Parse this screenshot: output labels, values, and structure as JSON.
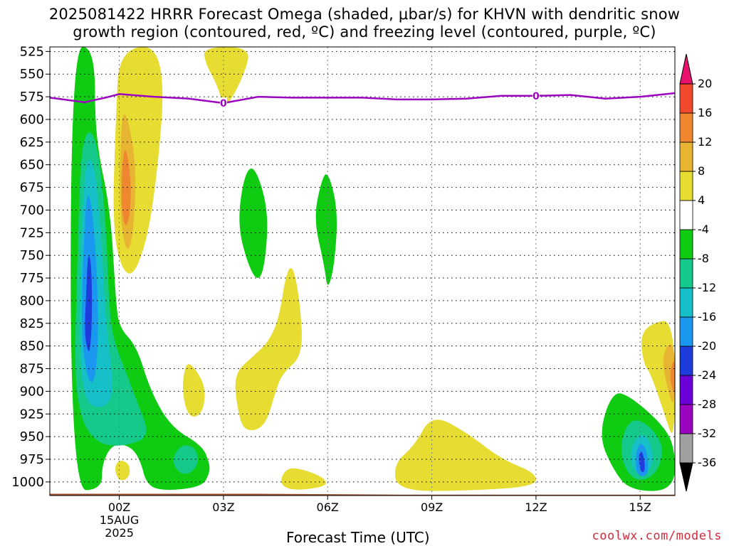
{
  "chart_data": {
    "type": "heatmap",
    "title_line1": "2025081422 HRRR Forecast Omega (shaded, μbar/s) for KHVN with dendritic snow",
    "title_line2": "growth region (contoured, red, ºC) and freezing level (contoured, purple, ºC)",
    "xlabel": "Forecast Time (UTC)",
    "x_axis": {
      "unit": "hours from 2025-08-14 22Z",
      "range": [
        0,
        18
      ],
      "ticks": [
        {
          "hour": 2,
          "label": "00Z",
          "sub1": "15AUG",
          "sub2": "2025"
        },
        {
          "hour": 5,
          "label": "03Z"
        },
        {
          "hour": 8,
          "label": "06Z"
        },
        {
          "hour": 11,
          "label": "09Z"
        },
        {
          "hour": 14,
          "label": "12Z"
        },
        {
          "hour": 17,
          "label": "15Z"
        }
      ]
    },
    "y_axis": {
      "unit": "hPa",
      "range": [
        1015,
        520
      ],
      "ticks": [
        "525",
        "550",
        "575",
        "600",
        "625",
        "650",
        "675",
        "700",
        "725",
        "750",
        "775",
        "800",
        "825",
        "850",
        "875",
        "900",
        "925",
        "950",
        "975",
        "1000"
      ]
    },
    "grid": true,
    "colorbar": {
      "placement": "right",
      "bins": [
        {
          "label": "-36",
          "color": "#000000"
        },
        {
          "label": "-32",
          "color": "#a0a0a0"
        },
        {
          "label": "-28",
          "color": "#9b05c0"
        },
        {
          "label": "-24",
          "color": "#6a00d7"
        },
        {
          "label": "-20",
          "color": "#1e3bdc"
        },
        {
          "label": "-16",
          "color": "#1a98f0"
        },
        {
          "label": "-12",
          "color": "#16c0c8"
        },
        {
          "label": "-8",
          "color": "#14c98a"
        },
        {
          "label": "-4",
          "color": "#0fcb11"
        },
        {
          "label": "4",
          "color": "#ffffff"
        },
        {
          "label": "8",
          "color": "#e6dc32"
        },
        {
          "label": "12",
          "color": "#e8b532"
        },
        {
          "label": "16",
          "color": "#ef8630"
        },
        {
          "label": "20",
          "color": "#f2492d"
        }
      ],
      "top_color": "#e8126e"
    },
    "freezing_level": {
      "color": "#9b05c0",
      "contour_label": "0",
      "points": [
        {
          "hour": 0,
          "hpa": 576
        },
        {
          "hour": 1,
          "hpa": 581
        },
        {
          "hour": 1.6,
          "hpa": 576
        },
        {
          "hour": 2,
          "hpa": 572
        },
        {
          "hour": 3,
          "hpa": 575
        },
        {
          "hour": 4,
          "hpa": 577
        },
        {
          "hour": 5,
          "hpa": 582
        },
        {
          "hour": 6,
          "hpa": 575
        },
        {
          "hour": 7,
          "hpa": 576
        },
        {
          "hour": 8,
          "hpa": 576
        },
        {
          "hour": 9,
          "hpa": 576
        },
        {
          "hour": 10,
          "hpa": 578
        },
        {
          "hour": 11,
          "hpa": 578
        },
        {
          "hour": 12,
          "hpa": 577
        },
        {
          "hour": 13,
          "hpa": 574
        },
        {
          "hour": 14,
          "hpa": 574
        },
        {
          "hour": 15,
          "hpa": 573
        },
        {
          "hour": 16,
          "hpa": 577
        },
        {
          "hour": 17,
          "hpa": 575
        },
        {
          "hour": 18,
          "hpa": 571
        }
      ]
    },
    "terrain": {
      "color": "#a0522d",
      "surface": [
        {
          "hour": 0,
          "hpa": 1013
        },
        {
          "hour": 6,
          "hpa": 1013
        },
        {
          "hour": 10,
          "hpa": 1014
        },
        {
          "hour": 18,
          "hpa": 1014
        }
      ]
    },
    "omega_regions": [
      {
        "name": "upward-motion-band-green",
        "value": -6,
        "color": "#0fcb11",
        "points": [
          [
            0.6,
            1010
          ],
          [
            0.6,
            520
          ],
          [
            1.3,
            520
          ],
          [
            1.3,
            620
          ],
          [
            1.75,
            700
          ],
          [
            1.9,
            800
          ],
          [
            2.0,
            830
          ],
          [
            2.5,
            850
          ],
          [
            2.9,
            900
          ],
          [
            3.5,
            940
          ],
          [
            4.4,
            960
          ],
          [
            4.6,
            980
          ],
          [
            4.6,
            990
          ],
          [
            4.4,
            1005
          ],
          [
            3.4,
            1010
          ],
          [
            2.8,
            1005
          ],
          [
            2.6,
            975
          ],
          [
            2.3,
            960
          ],
          [
            1.8,
            958
          ],
          [
            1.5,
            980
          ],
          [
            1.5,
            1008
          ]
        ]
      },
      {
        "name": "upward-motion-core-teal",
        "value": -10,
        "color": "#14c98a",
        "points": [
          [
            0.7,
            880
          ],
          [
            0.8,
            750
          ],
          [
            0.9,
            620
          ],
          [
            1.3,
            610
          ],
          [
            1.6,
            700
          ],
          [
            1.7,
            800
          ],
          [
            1.8,
            840
          ],
          [
            2.2,
            880
          ],
          [
            2.5,
            910
          ],
          [
            2.9,
            950
          ],
          [
            2.2,
            960
          ],
          [
            1.6,
            960
          ],
          [
            1.2,
            950
          ],
          [
            0.9,
            930
          ]
        ]
      },
      {
        "name": "upward-motion-core-cyan",
        "value": -14,
        "color": "#16c0c8",
        "points": [
          [
            0.85,
            850
          ],
          [
            0.9,
            720
          ],
          [
            1.05,
            640
          ],
          [
            1.3,
            650
          ],
          [
            1.5,
            740
          ],
          [
            1.6,
            820
          ],
          [
            1.8,
            880
          ],
          [
            1.8,
            910
          ],
          [
            1.4,
            920
          ],
          [
            1.0,
            910
          ]
        ]
      },
      {
        "name": "upward-motion-core-blue",
        "value": -18,
        "color": "#1a98f0",
        "points": [
          [
            0.9,
            840
          ],
          [
            0.95,
            760
          ],
          [
            1.05,
            680
          ],
          [
            1.2,
            690
          ],
          [
            1.35,
            760
          ],
          [
            1.4,
            840
          ],
          [
            1.3,
            890
          ],
          [
            1.1,
            890
          ]
        ]
      },
      {
        "name": "upward-motion-core-darkblue",
        "value": -22,
        "color": "#1e3bdc",
        "points": [
          [
            1.0,
            830
          ],
          [
            1.05,
            790
          ],
          [
            1.1,
            745
          ],
          [
            1.2,
            760
          ],
          [
            1.22,
            820
          ],
          [
            1.15,
            860
          ],
          [
            1.05,
            850
          ]
        ]
      },
      {
        "name": "upward-motion-sfc-teal",
        "value": -10,
        "color": "#14c98a",
        "points": [
          [
            3.5,
            975
          ],
          [
            3.8,
            958
          ],
          [
            4.2,
            962
          ],
          [
            4.3,
            980
          ],
          [
            4.0,
            992
          ],
          [
            3.7,
            990
          ]
        ]
      },
      {
        "name": "sinking-plume-upper",
        "value": 6,
        "color": "#e6dc32",
        "points": [
          [
            1.8,
            720
          ],
          [
            1.9,
            600
          ],
          [
            2.0,
            520
          ],
          [
            3.4,
            520
          ],
          [
            3.0,
            700
          ],
          [
            2.5,
            770
          ],
          [
            2.1,
            770
          ]
        ]
      },
      {
        "name": "sinking-plume-mid",
        "value": 10,
        "color": "#e8b532",
        "points": [
          [
            2.0,
            700
          ],
          [
            2.05,
            600
          ],
          [
            2.2,
            590
          ],
          [
            2.5,
            650
          ],
          [
            2.4,
            730
          ],
          [
            2.2,
            750
          ]
        ]
      },
      {
        "name": "sinking-plume-core",
        "value": 14,
        "color": "#ef8630",
        "points": [
          [
            2.05,
            690
          ],
          [
            2.1,
            640
          ],
          [
            2.2,
            630
          ],
          [
            2.35,
            670
          ],
          [
            2.3,
            710
          ],
          [
            2.15,
            720
          ]
        ]
      },
      {
        "name": "sinking-top-column",
        "value": 6,
        "color": "#e6dc32",
        "points": [
          [
            4.4,
            520
          ],
          [
            5.8,
            520
          ],
          [
            5.6,
            550
          ],
          [
            5.2,
            580
          ],
          [
            5.0,
            585
          ],
          [
            4.8,
            560
          ],
          [
            4.5,
            540
          ]
        ]
      },
      {
        "name": "upward-cell-a",
        "value": -6,
        "color": "#0fcb11",
        "points": [
          [
            5.4,
            715
          ],
          [
            5.6,
            660
          ],
          [
            5.9,
            650
          ],
          [
            6.3,
            700
          ],
          [
            6.2,
            760
          ],
          [
            6.0,
            780
          ],
          [
            5.7,
            760
          ]
        ]
      },
      {
        "name": "upward-cell-b",
        "value": -6,
        "color": "#0fcb11",
        "points": [
          [
            7.6,
            710
          ],
          [
            7.8,
            670
          ],
          [
            8.0,
            655
          ],
          [
            8.3,
            700
          ],
          [
            8.2,
            760
          ],
          [
            8.0,
            790
          ],
          [
            7.9,
            760
          ]
        ]
      },
      {
        "name": "sinking-small-a",
        "value": 6,
        "color": "#e6dc32",
        "points": [
          [
            3.8,
            900
          ],
          [
            3.9,
            870
          ],
          [
            4.1,
            870
          ],
          [
            4.5,
            895
          ],
          [
            4.4,
            925
          ],
          [
            4.0,
            930
          ]
        ]
      },
      {
        "name": "sinking-small-b",
        "value": 6,
        "color": "#e6dc32",
        "points": [
          [
            5.3,
            880
          ],
          [
            5.9,
            860
          ],
          [
            6.3,
            845
          ],
          [
            6.6,
            820
          ],
          [
            6.8,
            770
          ],
          [
            7.0,
            760
          ],
          [
            7.2,
            800
          ],
          [
            7.3,
            860
          ],
          [
            6.7,
            880
          ],
          [
            6.5,
            900
          ],
          [
            6.2,
            940
          ],
          [
            5.6,
            945
          ],
          [
            5.4,
            920
          ]
        ]
      },
      {
        "name": "sinking-small-c",
        "value": 6,
        "color": "#e6dc32",
        "points": [
          [
            1.85,
            985
          ],
          [
            2.0,
            975
          ],
          [
            2.3,
            980
          ],
          [
            2.3,
            995
          ],
          [
            2.0,
            1000
          ]
        ]
      },
      {
        "name": "sinking-sfc-a",
        "value": 6,
        "color": "#e6dc32",
        "points": [
          [
            6.6,
            1002
          ],
          [
            6.8,
            985
          ],
          [
            7.2,
            985
          ],
          [
            7.9,
            995
          ],
          [
            8.0,
            1005
          ],
          [
            7.0,
            1010
          ]
        ]
      },
      {
        "name": "sinking-sfc-b",
        "value": 6,
        "color": "#e6dc32",
        "points": [
          [
            9.9,
            980
          ],
          [
            10.5,
            960
          ],
          [
            11.0,
            925
          ],
          [
            12.0,
            945
          ],
          [
            13.0,
            975
          ],
          [
            14.0,
            990
          ],
          [
            14.0,
            1005
          ],
          [
            12.0,
            1010
          ],
          [
            10.0,
            1010
          ]
        ]
      },
      {
        "name": "upward-cell-late",
        "value": -6,
        "color": "#0fcb11",
        "points": [
          [
            15.8,
            948
          ],
          [
            16.2,
            900
          ],
          [
            16.7,
            905
          ],
          [
            17.6,
            935
          ],
          [
            18.0,
            960
          ],
          [
            18.0,
            1010
          ],
          [
            16.7,
            1010
          ],
          [
            16.2,
            985
          ]
        ]
      },
      {
        "name": "upward-cell-late-teal",
        "value": -10,
        "color": "#14c98a",
        "points": [
          [
            16.4,
            960
          ],
          [
            16.7,
            930
          ],
          [
            17.2,
            935
          ],
          [
            17.7,
            960
          ],
          [
            17.5,
            990
          ],
          [
            17.0,
            1000
          ],
          [
            16.6,
            990
          ]
        ]
      },
      {
        "name": "upward-cell-late-cyan",
        "value": -14,
        "color": "#16c0c8",
        "points": [
          [
            16.7,
            965
          ],
          [
            17.0,
            945
          ],
          [
            17.3,
            955
          ],
          [
            17.4,
            980
          ],
          [
            17.1,
            995
          ],
          [
            16.8,
            988
          ]
        ]
      },
      {
        "name": "upward-cell-late-blue",
        "value": -18,
        "color": "#1a98f0",
        "points": [
          [
            16.85,
            972
          ],
          [
            17.0,
            955
          ],
          [
            17.2,
            965
          ],
          [
            17.25,
            990
          ],
          [
            17.05,
            995
          ],
          [
            16.9,
            990
          ]
        ]
      },
      {
        "name": "upward-cell-late-core",
        "value": -22,
        "color": "#1e3bdc",
        "points": [
          [
            16.95,
            975
          ],
          [
            17.0,
            965
          ],
          [
            17.1,
            970
          ],
          [
            17.15,
            988
          ],
          [
            17.02,
            990
          ]
        ]
      },
      {
        "name": "sinking-east-edge",
        "value": 6,
        "color": "#e6dc32",
        "points": [
          [
            17.0,
            840
          ],
          [
            17.3,
            825
          ],
          [
            18.0,
            820
          ],
          [
            18.0,
            960
          ],
          [
            17.7,
            925
          ],
          [
            17.3,
            880
          ],
          [
            17.1,
            870
          ]
        ]
      },
      {
        "name": "sinking-east-edge-mid",
        "value": 10,
        "color": "#e8b532",
        "points": [
          [
            17.6,
            860
          ],
          [
            18.0,
            840
          ],
          [
            18.0,
            920
          ],
          [
            17.8,
            900
          ]
        ]
      },
      {
        "name": "sinking-east-edge-core",
        "value": 14,
        "color": "#ef8630",
        "points": [
          [
            17.85,
            880
          ],
          [
            18.0,
            860
          ],
          [
            18.0,
            905
          ],
          [
            17.9,
            895
          ]
        ]
      }
    ]
  },
  "credit": "coolwx.com/models"
}
